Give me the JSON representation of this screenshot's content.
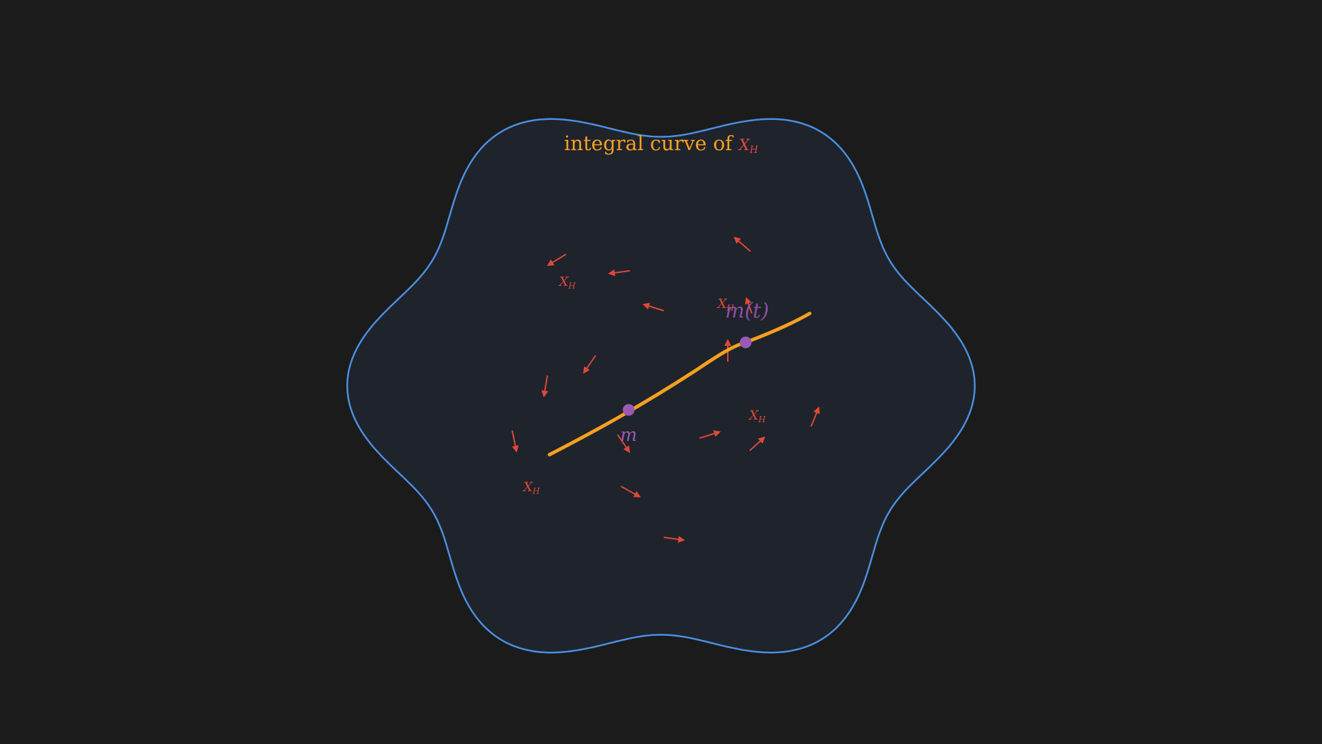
{
  "colors": {
    "background": "#1b1b1b",
    "manifold_fill": "#1f232b",
    "manifold_stroke": "#4a90e2",
    "curve": "#f5a020",
    "vector_field": "#e0483a",
    "points": "#9b59b6"
  },
  "title": {
    "text": "integral curve of ",
    "symbol": "X",
    "subscript": "H"
  },
  "labels": {
    "start_point": "m",
    "flow_point": "m(t)",
    "field_symbol": "X",
    "field_subscript": "H"
  },
  "field_label_count": 4
}
